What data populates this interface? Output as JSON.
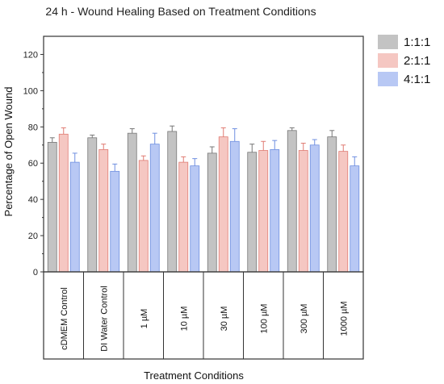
{
  "chart_data": {
    "type": "bar",
    "title": "24 h  - Wound Healing Based on Treatment Conditions",
    "xlabel": "Treatment Conditions",
    "ylabel": "Percentage of Open Wound",
    "ylim": [
      0,
      130
    ],
    "yticks": [
      0,
      20,
      40,
      60,
      80,
      100,
      120
    ],
    "categories": [
      "cDMEM Control",
      "DI Water Control",
      "1 µM",
      "10 µM",
      "30 µM",
      "100 µM",
      "300 µM",
      "1000 µM"
    ],
    "series": [
      {
        "name": "1:1:1",
        "color": "#c3c3c3",
        "error_color": "#777777",
        "values": [
          71.5,
          74,
          76.5,
          77.5,
          65.5,
          66,
          78,
          74.5
        ],
        "errors": [
          2.5,
          1.5,
          2.5,
          3,
          3.5,
          4.5,
          1.5,
          3.5
        ]
      },
      {
        "name": "2:1:1",
        "color": "#f5c7c2",
        "error_color": "#e07b72",
        "values": [
          76,
          67.5,
          61.5,
          60.5,
          74.5,
          67,
          67,
          66.5
        ],
        "errors": [
          3.5,
          3,
          2.5,
          3,
          5,
          5,
          4,
          3.5
        ]
      },
      {
        "name": "4:1:1",
        "color": "#b8c8f4",
        "error_color": "#6f8fe0",
        "values": [
          60.5,
          55.5,
          70.5,
          58.5,
          72,
          67.5,
          70,
          58.5
        ],
        "errors": [
          5,
          4,
          6,
          4,
          7,
          5,
          3,
          5
        ]
      }
    ],
    "legend_position": "right",
    "grid": false
  }
}
